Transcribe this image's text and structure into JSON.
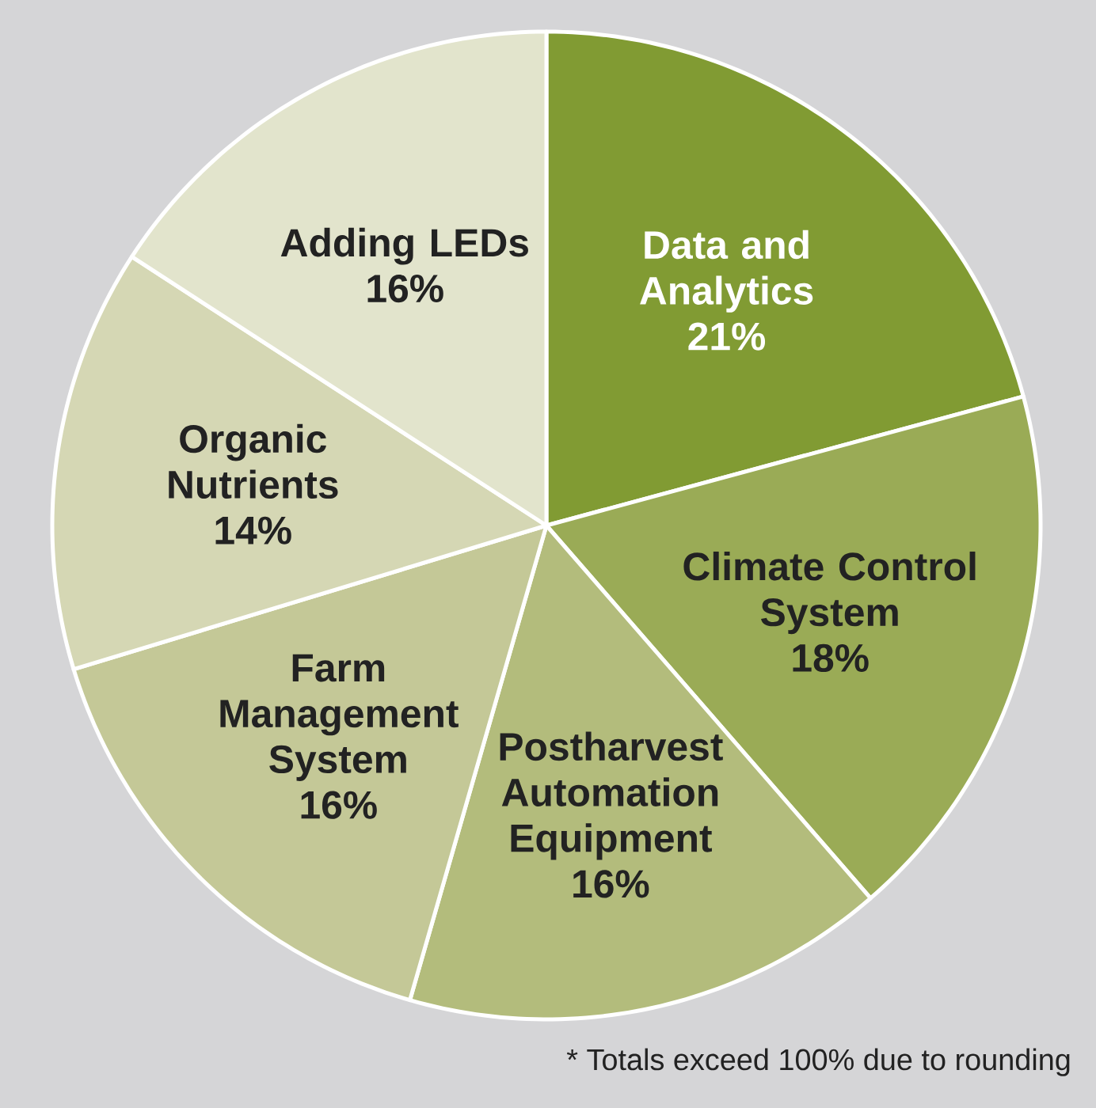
{
  "chart_data": {
    "type": "pie",
    "categories": [
      "Data and Analytics",
      "Climate Control System",
      "Postharvest Automation Equipment",
      "Farm Management System",
      "Organic Nutrients",
      "Adding LEDs"
    ],
    "values": [
      21,
      18,
      16,
      16,
      14,
      16
    ],
    "value_labels": [
      "21%",
      "18%",
      "16%",
      "16%",
      "14%",
      "16%"
    ],
    "colors": [
      "#819b33",
      "#9aab56",
      "#b3bc7c",
      "#c4c897",
      "#d5d7b4",
      "#e2e4cc"
    ],
    "annotations": [
      "* Totals exceed 100% due to rounding"
    ]
  }
}
